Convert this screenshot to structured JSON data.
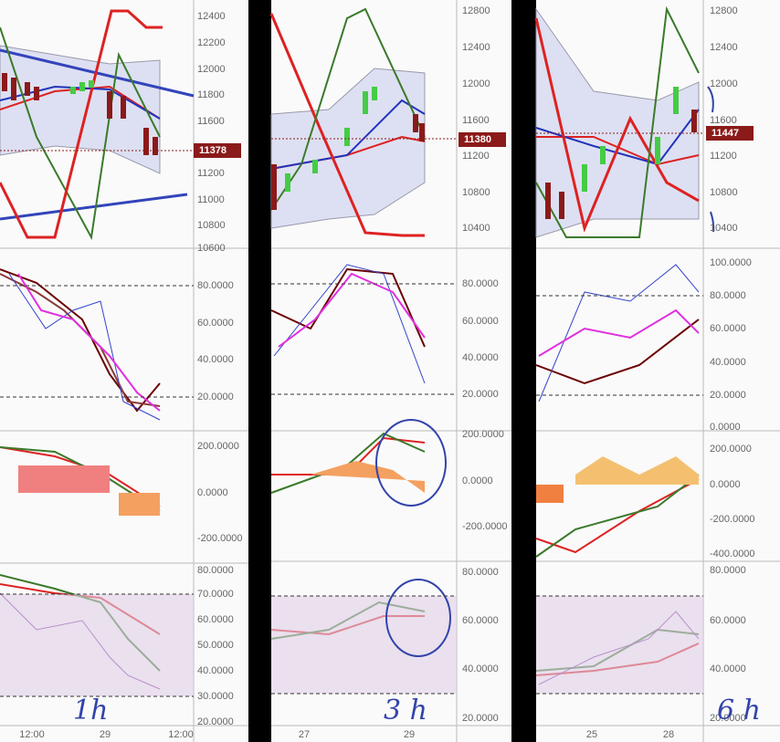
{
  "panels": [
    {
      "price_ticks": [
        "12400",
        "12200",
        "12000",
        "11800",
        "11600",
        "11200",
        "11000",
        "10800",
        "10600"
      ],
      "price_label": "11378",
      "stoch_ticks": [
        "80.0000",
        "60.0000",
        "40.0000",
        "20.0000"
      ],
      "macd_ticks": [
        "200.0000",
        "0.0000",
        "-200.0000"
      ],
      "rsi_ticks": [
        "80.0000",
        "70.0000",
        "60.0000",
        "50.0000",
        "40.0000",
        "30.0000",
        "20.0000"
      ],
      "x_labels": [
        "12:00",
        "29",
        "12:00"
      ],
      "note": "1h"
    },
    {
      "price_ticks": [
        "12800",
        "12400",
        "12000",
        "11600",
        "11200",
        "10800",
        "10400"
      ],
      "price_label": "11380",
      "stoch_ticks": [
        "80.0000",
        "60.0000",
        "40.0000",
        "20.0000"
      ],
      "macd_ticks": [
        "200.0000",
        "0.0000",
        "-200.0000"
      ],
      "rsi_ticks": [
        "80.0000",
        "60.0000",
        "40.0000",
        "20.0000"
      ],
      "x_labels": [
        "27",
        "29"
      ],
      "note": "3 h"
    },
    {
      "price_ticks": [
        "12800",
        "12400",
        "12000",
        "11600",
        "11200",
        "10800",
        "10400"
      ],
      "price_label": "11447",
      "stoch_ticks": [
        "100.0000",
        "80.0000",
        "60.0000",
        "40.0000",
        "20.0000",
        "0.0000"
      ],
      "macd_ticks": [
        "200.0000",
        "0.0000",
        "-200.0000",
        "-400.0000"
      ],
      "rsi_ticks": [
        "80.0000",
        "60.0000",
        "40.0000",
        "20.0000"
      ],
      "x_labels": [
        "25",
        "28"
      ],
      "note": "6 h"
    }
  ]
}
